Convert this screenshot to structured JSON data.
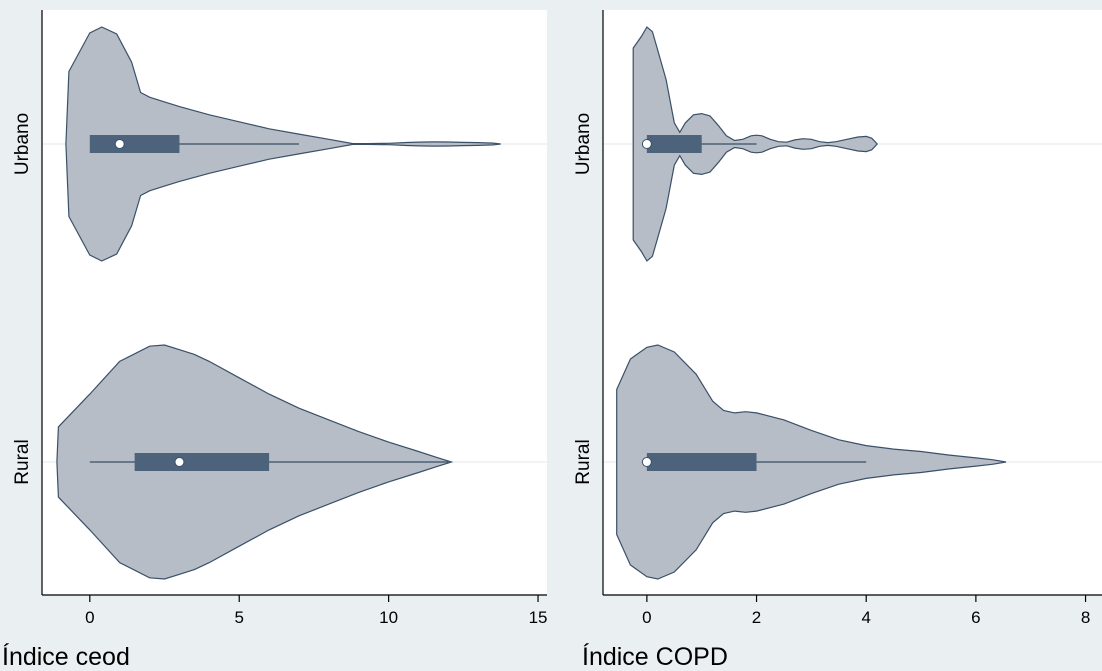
{
  "colors": {
    "background": "#eaf0f2",
    "plot_area": "#ffffff",
    "violin_fill": "#b6bdc6",
    "violin_outline": "#3a5068",
    "box_fill": "#4d637c",
    "median_marker": "#ffffff"
  },
  "chart_data": [
    {
      "type": "violin",
      "orientation": "horizontal",
      "xlabel": "Índice ceod",
      "xlim": [
        -1.6,
        15.3
      ],
      "xticks": [
        0,
        5,
        10,
        15
      ],
      "xtick_labels": [
        "0",
        "5",
        "10",
        "15"
      ],
      "categories": [
        "Urbano",
        "Rural"
      ],
      "groups": [
        {
          "name": "Urbano",
          "box": {
            "whisker_low": 0,
            "q1": 0,
            "median": 1,
            "q3": 3,
            "whisker_high": 7
          },
          "density": {
            "x": [
              -0.8,
              -0.7,
              0.0,
              0.4,
              0.9,
              1.4,
              1.7,
              2.0,
              2.5,
              3.0,
              4.0,
              5.0,
              6.0,
              7.0,
              8.0,
              8.8,
              9.3,
              10.0,
              10.6,
              11.0,
              11.5,
              12.0,
              12.5,
              13.0,
              13.5,
              13.75
            ],
            "half_width": [
              0.0,
              0.62,
              0.95,
              1.0,
              0.94,
              0.7,
              0.44,
              0.4,
              0.36,
              0.32,
              0.25,
              0.19,
              0.13,
              0.085,
              0.04,
              0.003,
              0.003,
              0.006,
              0.013,
              0.016,
              0.018,
              0.017,
              0.014,
              0.012,
              0.008,
              0.0
            ]
          }
        },
        {
          "name": "Rural",
          "box": {
            "whisker_low": 0,
            "q1": 1.5,
            "median": 3,
            "q3": 6,
            "whisker_high": 12
          },
          "density": {
            "x": [
              -1.1,
              -1.05,
              0.0,
              1.0,
              2.0,
              2.5,
              3.0,
              3.5,
              4.0,
              5.0,
              6.0,
              7.0,
              8.0,
              9.0,
              10.0,
              11.0,
              11.6,
              12.1
            ],
            "half_width": [
              0.0,
              0.3,
              0.58,
              0.86,
              0.99,
              1.0,
              0.96,
              0.92,
              0.86,
              0.72,
              0.58,
              0.46,
              0.36,
              0.26,
              0.17,
              0.09,
              0.04,
              0.0
            ]
          }
        }
      ]
    },
    {
      "type": "violin",
      "orientation": "horizontal",
      "xlabel": "Índice COPD",
      "xlim": [
        -0.8,
        8.3
      ],
      "xticks": [
        0,
        2,
        4,
        6,
        8
      ],
      "xtick_labels": [
        "0",
        "2",
        "4",
        "6",
        "8"
      ],
      "categories": [
        "Urbano",
        "Rural"
      ],
      "groups": [
        {
          "name": "Urbano",
          "box": {
            "whisker_low": 0,
            "q1": 0,
            "median": 0,
            "q3": 1,
            "whisker_high": 2
          },
          "density": {
            "x": [
              -0.25,
              -0.25,
              -0.1,
              0.0,
              0.1,
              0.2,
              0.35,
              0.5,
              0.6,
              0.7,
              0.85,
              1.0,
              1.15,
              1.3,
              1.45,
              1.6,
              1.75,
              1.9,
              2.0,
              2.1,
              2.25,
              2.4,
              2.55,
              2.7,
              2.85,
              3.0,
              3.15,
              3.3,
              3.45,
              3.65,
              3.85,
              4.0,
              4.1,
              4.2
            ],
            "half_width": [
              0.0,
              0.82,
              0.92,
              1.0,
              0.96,
              0.8,
              0.55,
              0.18,
              0.1,
              0.18,
              0.25,
              0.26,
              0.24,
              0.16,
              0.07,
              0.03,
              0.04,
              0.07,
              0.075,
              0.07,
              0.04,
              0.02,
              0.015,
              0.035,
              0.045,
              0.04,
              0.02,
              0.012,
              0.02,
              0.04,
              0.06,
              0.065,
              0.05,
              0.0
            ]
          }
        },
        {
          "name": "Rural",
          "box": {
            "whisker_low": 0,
            "q1": 0,
            "median": 0,
            "q3": 2,
            "whisker_high": 4
          },
          "density": {
            "x": [
              -0.55,
              -0.55,
              -0.3,
              0.0,
              0.2,
              0.5,
              0.9,
              1.2,
              1.4,
              1.6,
              1.8,
              2.0,
              2.5,
              3.0,
              3.5,
              4.0,
              4.5,
              5.0,
              5.5,
              6.0,
              6.3,
              6.55
            ],
            "half_width": [
              0.0,
              0.62,
              0.88,
              0.98,
              1.0,
              0.94,
              0.75,
              0.52,
              0.44,
              0.42,
              0.43,
              0.42,
              0.36,
              0.27,
              0.19,
              0.14,
              0.11,
              0.09,
              0.06,
              0.035,
              0.02,
              0.0
            ]
          }
        }
      ]
    }
  ]
}
